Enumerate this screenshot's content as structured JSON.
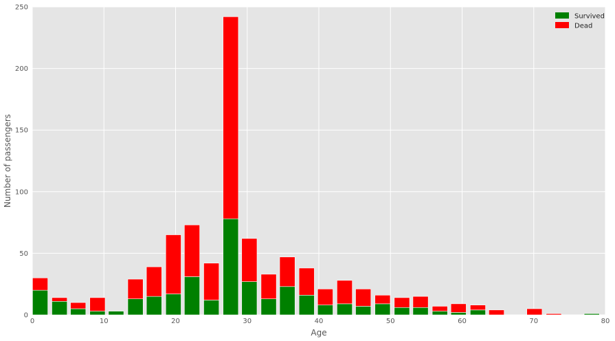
{
  "chart_data": {
    "type": "bar",
    "stacked": true,
    "xlabel": "Age",
    "ylabel": "Number of passengers",
    "xlim": [
      0,
      80
    ],
    "ylim": [
      0,
      250
    ],
    "xticks": [
      0,
      10,
      20,
      30,
      40,
      50,
      60,
      70,
      80
    ],
    "yticks": [
      0,
      50,
      100,
      150,
      200,
      250
    ],
    "grid": true,
    "legend_position": "top-right",
    "bins": [
      1.1,
      3.8,
      6.4,
      9.1,
      11.7,
      14.4,
      17.0,
      19.7,
      22.3,
      25.0,
      27.7,
      30.3,
      33.0,
      35.6,
      38.3,
      40.9,
      43.6,
      46.2,
      48.9,
      51.6,
      54.2,
      56.9,
      59.5,
      62.2,
      64.8,
      67.5,
      70.1,
      72.8,
      75.5,
      78.1
    ],
    "series": [
      {
        "name": "Survived",
        "color": "#008000",
        "values": [
          20,
          11,
          5,
          3,
          3,
          13,
          15,
          17,
          31,
          12,
          78,
          27,
          13,
          23,
          16,
          8,
          9,
          7,
          9,
          6,
          6,
          3,
          2,
          4,
          0,
          0,
          0,
          0,
          0,
          1
        ]
      },
      {
        "name": "Dead",
        "color": "#ff0000",
        "values": [
          10,
          3,
          5,
          11,
          0,
          16,
          24,
          48,
          42,
          30,
          164,
          35,
          20,
          24,
          22,
          13,
          19,
          14,
          7,
          8,
          9,
          4,
          7,
          4,
          4,
          0,
          5,
          1,
          0,
          0
        ]
      }
    ]
  }
}
